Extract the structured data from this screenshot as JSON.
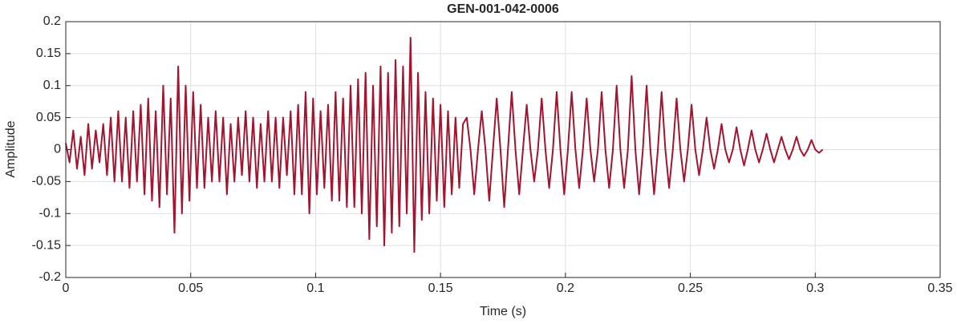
{
  "chart_data": {
    "type": "line",
    "title": "GEN-001-042-0006",
    "x_label": "Time (s)",
    "y_label": "Amplitude",
    "xlim": [
      0,
      0.35
    ],
    "xticks": [
      0,
      0.05,
      0.1,
      0.15,
      0.2,
      0.25,
      0.3,
      0.35
    ],
    "ylim": [
      -0.2,
      0.2
    ],
    "yticks": [
      -0.2,
      -0.15,
      -0.1,
      -0.05,
      0,
      0.05,
      0.1,
      0.15,
      0.2
    ],
    "grid": true,
    "series": [
      {
        "color": "#a2142f",
        "x": [
          0,
          0.0015,
          0.003,
          0.0045,
          0.006,
          0.0075,
          0.009,
          0.0105,
          0.012,
          0.0135,
          0.015,
          0.0165,
          0.018,
          0.0195,
          0.021,
          0.0225,
          0.024,
          0.0255,
          0.027,
          0.0285,
          0.03,
          0.0315,
          0.033,
          0.0345,
          0.036,
          0.0375,
          0.039,
          0.0405,
          0.042,
          0.0435,
          0.045,
          0.0465,
          0.048,
          0.0495,
          0.051,
          0.0525,
          0.054,
          0.0555,
          0.057,
          0.0585,
          0.06,
          0.0615,
          0.063,
          0.0645,
          0.066,
          0.0675,
          0.069,
          0.0705,
          0.072,
          0.0735,
          0.075,
          0.0765,
          0.078,
          0.0795,
          0.081,
          0.0825,
          0.084,
          0.0855,
          0.087,
          0.0885,
          0.09,
          0.0915,
          0.093,
          0.0945,
          0.096,
          0.0975,
          0.099,
          0.1005,
          0.102,
          0.1035,
          0.105,
          0.1065,
          0.108,
          0.1095,
          0.111,
          0.1125,
          0.114,
          0.1155,
          0.117,
          0.1185,
          0.12,
          0.1215,
          0.123,
          0.1245,
          0.126,
          0.1275,
          0.129,
          0.1305,
          0.132,
          0.1335,
          0.135,
          0.1365,
          0.138,
          0.1395,
          0.141,
          0.1425,
          0.144,
          0.1455,
          0.147,
          0.1485,
          0.15,
          0.1515,
          0.153,
          0.1545,
          0.156,
          0.1575,
          0.159,
          0.1605,
          0.162,
          0.1635,
          0.165,
          0.1665,
          0.168,
          0.1695,
          0.171,
          0.1725,
          0.174,
          0.1755,
          0.177,
          0.1785,
          0.18,
          0.1815,
          0.183,
          0.1845,
          0.186,
          0.1875,
          0.189,
          0.1905,
          0.192,
          0.1935,
          0.195,
          0.1965,
          0.198,
          0.1995,
          0.201,
          0.2025,
          0.204,
          0.2055,
          0.207,
          0.2085,
          0.21,
          0.2115,
          0.213,
          0.2145,
          0.216,
          0.2175,
          0.219,
          0.2205,
          0.222,
          0.2235,
          0.225,
          0.2265,
          0.228,
          0.2295,
          0.231,
          0.2325,
          0.234,
          0.2355,
          0.237,
          0.2385,
          0.24,
          0.2415,
          0.243,
          0.2445,
          0.246,
          0.2475,
          0.249,
          0.2505,
          0.252,
          0.2535,
          0.255,
          0.2565,
          0.258,
          0.2595,
          0.261,
          0.2625,
          0.264,
          0.2655,
          0.267,
          0.2685,
          0.27,
          0.2715,
          0.273,
          0.2745,
          0.276,
          0.2775,
          0.279,
          0.2805,
          0.282,
          0.2835,
          0.285,
          0.2865,
          0.288,
          0.2895,
          0.291,
          0.2925,
          0.294,
          0.2955,
          0.297,
          0.2985,
          0.3,
          0.3015,
          0.303
        ],
        "values": [
          0.01,
          -0.02,
          0.03,
          -0.03,
          0.02,
          -0.04,
          0.04,
          -0.03,
          0.03,
          -0.02,
          0.04,
          -0.04,
          0.05,
          -0.05,
          0.06,
          -0.05,
          0.05,
          -0.06,
          0.06,
          -0.05,
          0.07,
          -0.07,
          0.08,
          -0.08,
          0.06,
          -0.09,
          0.1,
          -0.07,
          0.08,
          -0.13,
          0.13,
          -0.1,
          0.1,
          -0.08,
          0.09,
          -0.06,
          0.07,
          -0.06,
          0.05,
          -0.05,
          0.06,
          -0.05,
          0.05,
          -0.07,
          0.04,
          -0.05,
          0.05,
          -0.04,
          0.06,
          -0.05,
          0.05,
          -0.06,
          0.04,
          -0.05,
          0.06,
          -0.05,
          0.05,
          -0.06,
          0.05,
          -0.04,
          0.06,
          -0.07,
          0.07,
          -0.07,
          0.09,
          -0.1,
          0.08,
          -0.07,
          0.06,
          -0.06,
          0.07,
          -0.08,
          0.09,
          -0.08,
          0.08,
          -0.09,
          0.1,
          -0.09,
          0.11,
          -0.1,
          0.12,
          -0.14,
          0.1,
          -0.12,
          0.13,
          -0.15,
          0.12,
          -0.13,
          0.14,
          -0.12,
          0.13,
          -0.1,
          0.175,
          -0.16,
          0.12,
          -0.11,
          0.09,
          -0.1,
          0.08,
          -0.08,
          0.07,
          -0.09,
          0.06,
          -0.07,
          0.05,
          -0.06,
          0.04,
          0.05,
          0,
          -0.07,
          0,
          0.06,
          0,
          -0.08,
          0,
          0.08,
          0,
          -0.09,
          0,
          0.09,
          0,
          -0.07,
          0,
          0.07,
          0,
          -0.05,
          0,
          0.08,
          0,
          -0.06,
          0,
          0.09,
          0,
          -0.07,
          0,
          0.09,
          0,
          -0.06,
          0,
          0.08,
          0,
          -0.05,
          0,
          0.09,
          0,
          -0.06,
          0,
          0.1,
          0,
          -0.06,
          0,
          0.115,
          0,
          -0.07,
          0,
          0.1,
          0,
          -0.07,
          0,
          0.09,
          0,
          -0.06,
          0,
          0.08,
          0,
          -0.05,
          0,
          0.07,
          0,
          -0.04,
          0,
          0.05,
          0,
          -0.03,
          0,
          0.04,
          0,
          -0.02,
          0,
          0.035,
          0,
          -0.025,
          0,
          0.03,
          0,
          -0.02,
          0,
          0.025,
          0,
          -0.02,
          0,
          0.02,
          0,
          -0.015,
          0,
          0.02,
          0,
          -0.01,
          0,
          0.015,
          0,
          -0.005,
          0
        ]
      }
    ]
  }
}
